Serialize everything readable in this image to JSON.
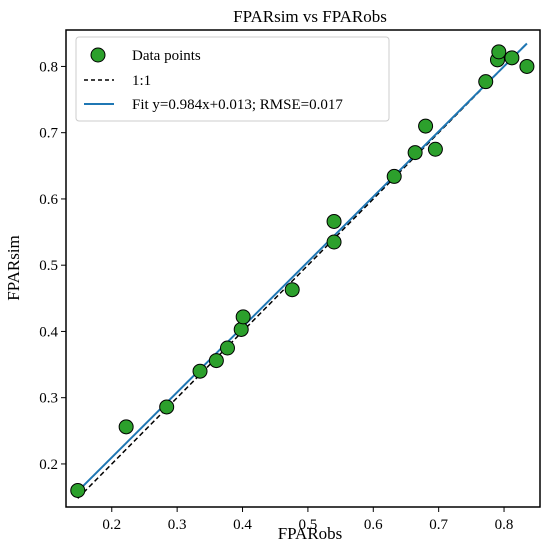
{
  "chart_data": {
    "type": "scatter",
    "title": "FPARsim vs FPARobs",
    "xlabel": "FPARobs",
    "ylabel": "FPARsim",
    "xlim": [
      0.13,
      0.855
    ],
    "ylim": [
      0.135,
      0.855
    ],
    "xticks": [
      "0.2",
      "0.3",
      "0.4",
      "0.5",
      "0.6",
      "0.7",
      "0.8"
    ],
    "yticks": [
      "0.2",
      "0.3",
      "0.4",
      "0.5",
      "0.6",
      "0.7",
      "0.8"
    ],
    "grid": false,
    "legend_position": "top-left",
    "series": [
      {
        "name": "Data points",
        "kind": "scatter",
        "color": "#2ca02c",
        "x": [
          0.148,
          0.222,
          0.284,
          0.335,
          0.36,
          0.377,
          0.398,
          0.401,
          0.476,
          0.54,
          0.54,
          0.632,
          0.664,
          0.68,
          0.695,
          0.772,
          0.79,
          0.792,
          0.812,
          0.835
        ],
        "y": [
          0.16,
          0.256,
          0.286,
          0.34,
          0.356,
          0.375,
          0.403,
          0.422,
          0.463,
          0.566,
          0.535,
          0.634,
          0.67,
          0.71,
          0.675,
          0.777,
          0.81,
          0.822,
          0.813,
          0.8
        ]
      },
      {
        "name": "1:1",
        "kind": "line",
        "style": "dashed",
        "color": "#000000",
        "x": [
          0.148,
          0.835
        ],
        "y": [
          0.148,
          0.835
        ]
      },
      {
        "name": "Fit y=0.984x+0.013; RMSE=0.017",
        "kind": "line",
        "style": "solid",
        "color": "#1f77b4",
        "slope": 0.984,
        "intercept": 0.013,
        "x": [
          0.148,
          0.835
        ]
      }
    ]
  }
}
